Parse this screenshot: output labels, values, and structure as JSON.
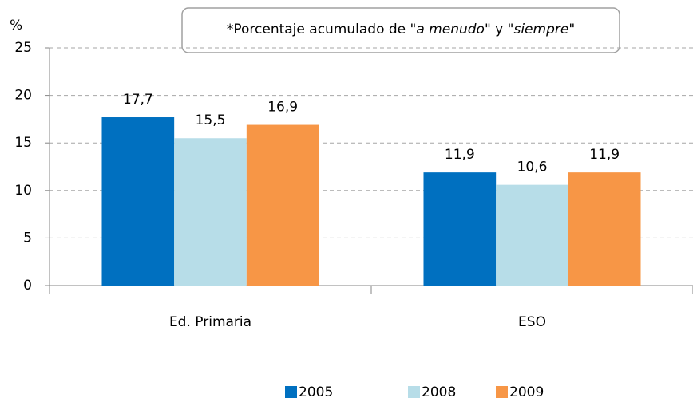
{
  "chart_data": {
    "type": "bar",
    "y_label": "%",
    "annotation": [
      "*Porcentaje acumulado de \"",
      "a menudo",
      "\" y \"",
      "siempre",
      "\""
    ],
    "categories": [
      "Ed. Primaria",
      "ESO"
    ],
    "series": [
      {
        "name": "2005",
        "color": "#0070c0",
        "values": [
          17.7,
          11.9
        ],
        "value_labels": [
          "17,7",
          "11,9"
        ]
      },
      {
        "name": "2008",
        "color": "#b7dde8",
        "values": [
          15.5,
          10.6
        ],
        "value_labels": [
          "15,5",
          "10,6"
        ]
      },
      {
        "name": "2009",
        "color": "#f79646",
        "values": [
          16.9,
          11.9
        ],
        "value_labels": [
          "16,9",
          "11,9"
        ]
      }
    ],
    "ylim": [
      0,
      25
    ],
    "yticks": [
      0,
      5,
      10,
      15,
      20,
      25
    ],
    "grid": true,
    "legend": "bottom"
  }
}
